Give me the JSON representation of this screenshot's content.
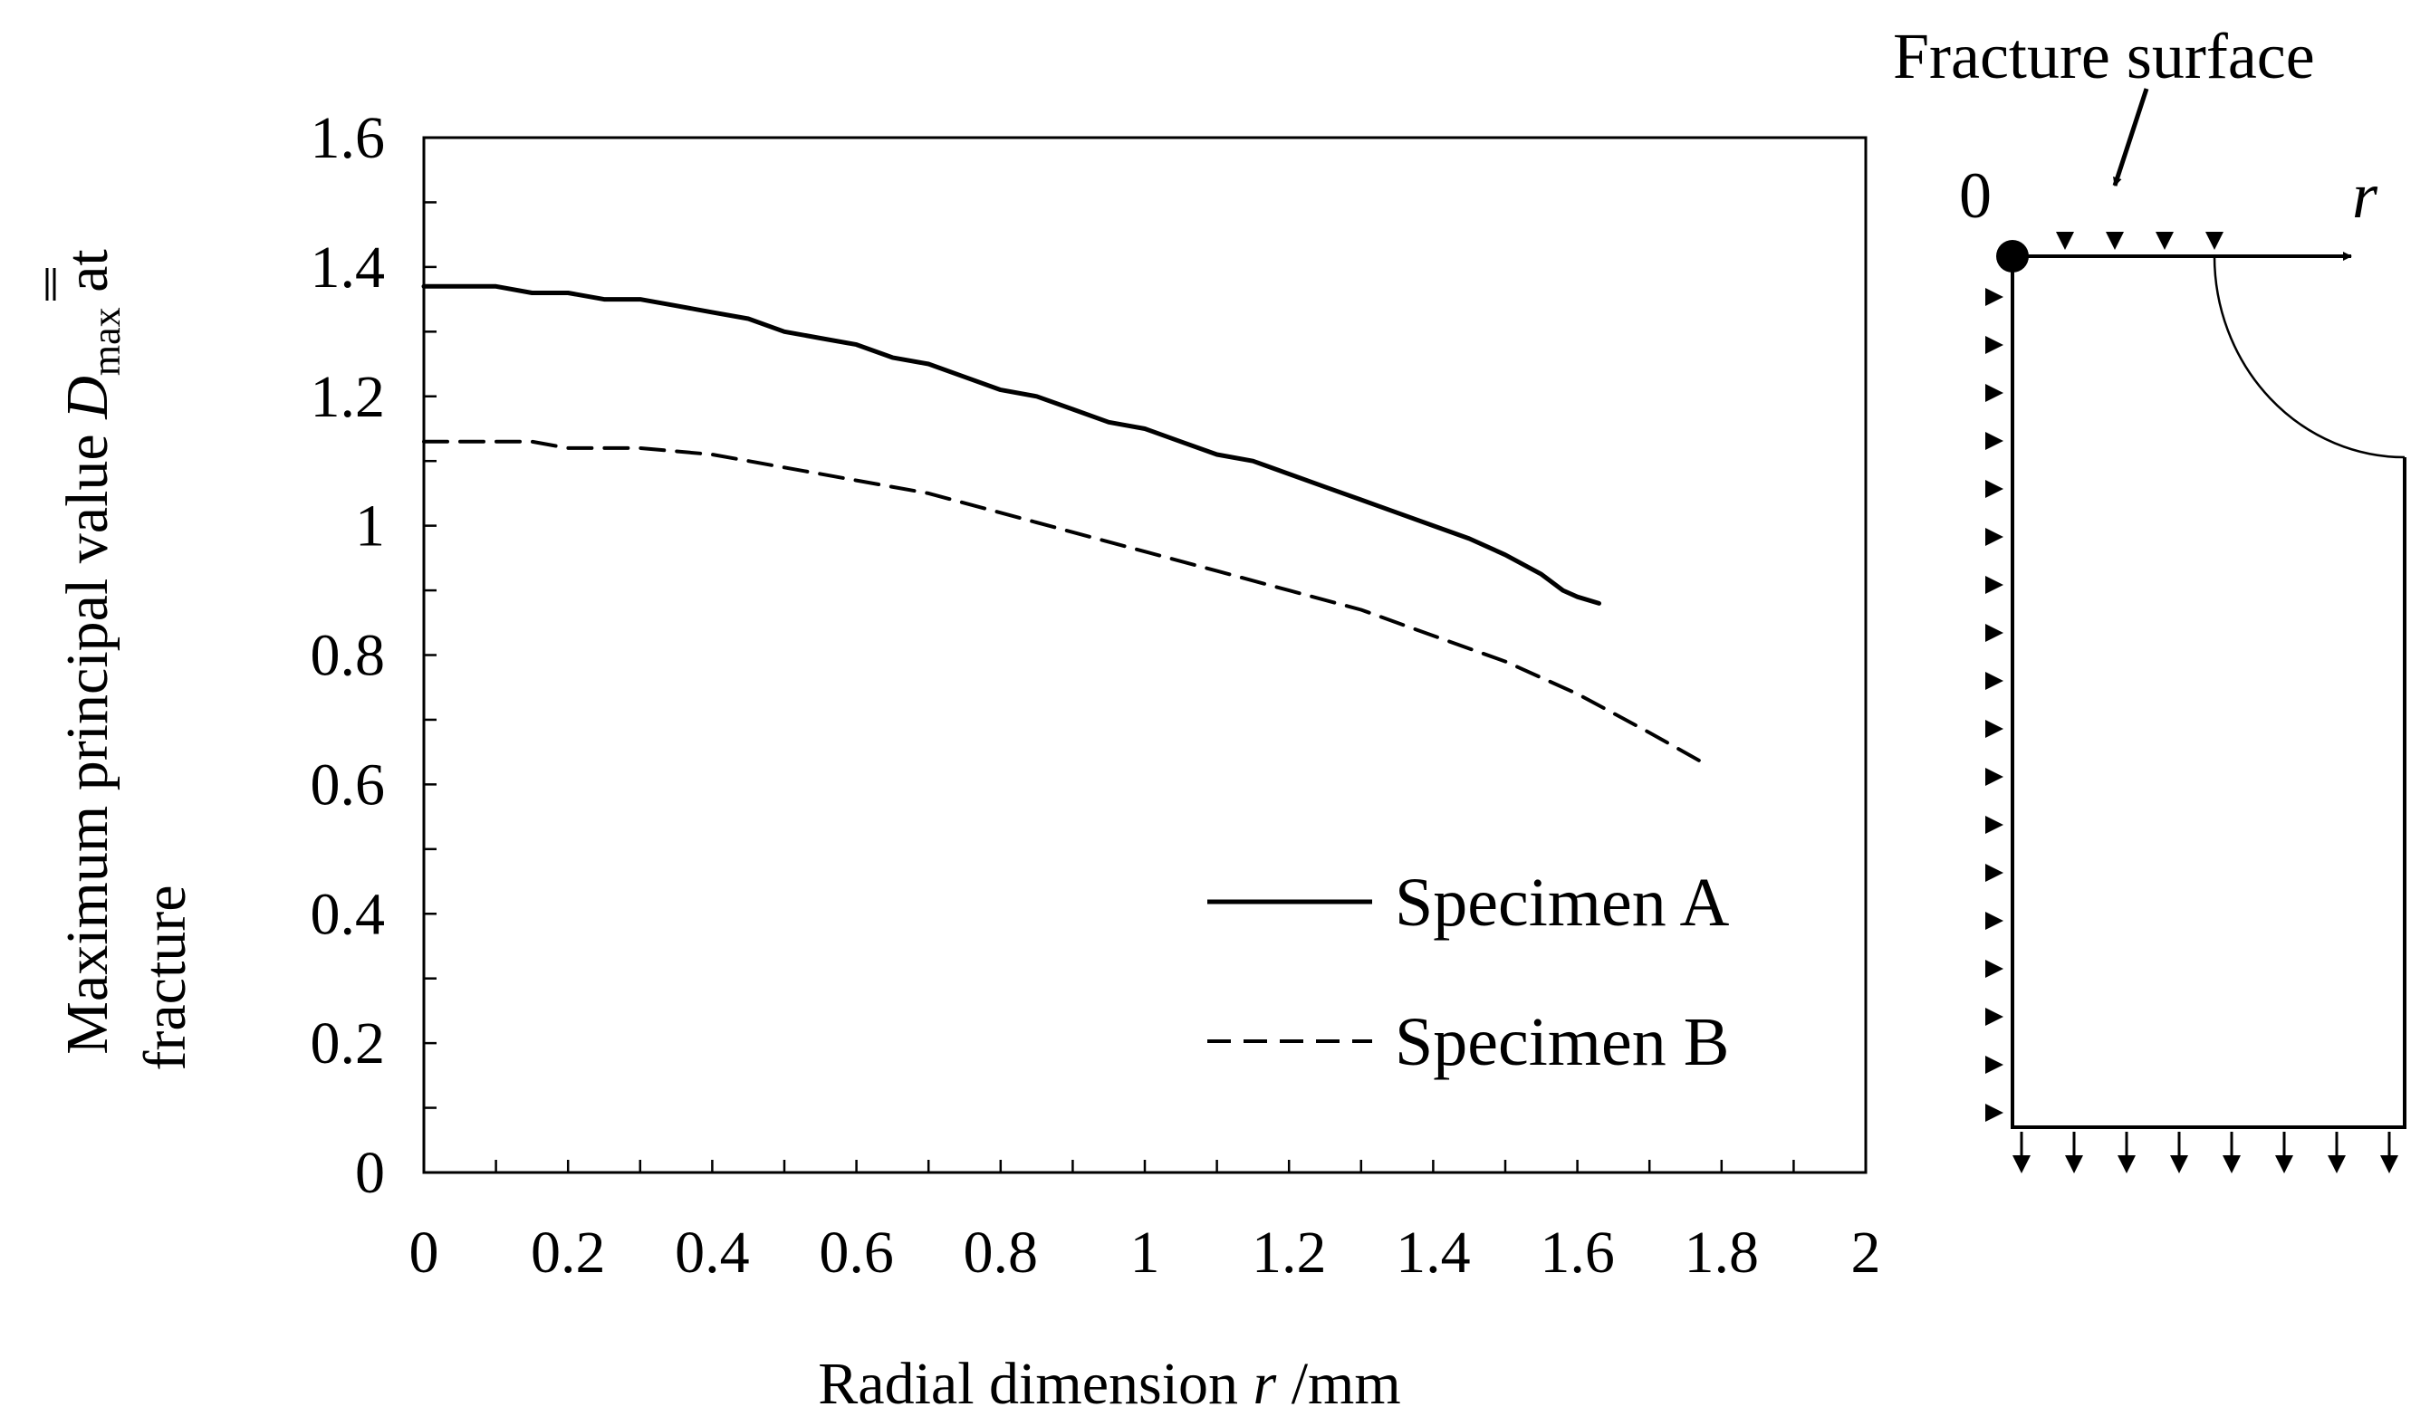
{
  "chart_data": {
    "type": "line",
    "title": "",
    "xlabel": "Radial dimension r /mm",
    "xlabel_parts": {
      "prefix": "Radial dimension ",
      "variable": "r",
      "suffix": " /mm"
    },
    "ylabel_line1": {
      "prefix": "Maximum principal value ",
      "symbol": "D",
      "subscript": "max",
      "suffix": " at"
    },
    "ylabel_line2": "fracture",
    "xlim": [
      0,
      2
    ],
    "ylim": [
      0,
      1.6
    ],
    "x_ticks": [
      "0",
      "0.2",
      "0.4",
      "0.6",
      "0.8",
      "1",
      "1.2",
      "1.4",
      "1.6",
      "1.8",
      "2"
    ],
    "y_ticks": [
      "0",
      "0.2",
      "0.4",
      "0.6",
      "0.8",
      "1",
      "1.2",
      "1.4",
      "1.6"
    ],
    "x_tick_values": [
      0,
      0.2,
      0.4,
      0.6,
      0.8,
      1,
      1.2,
      1.4,
      1.6,
      1.8,
      2
    ],
    "y_tick_values": [
      0,
      0.2,
      0.4,
      0.6,
      0.8,
      1,
      1.2,
      1.4,
      1.6
    ],
    "grid": false,
    "legend_position": "bottom-right",
    "series": [
      {
        "name": "Specimen A",
        "style": "solid",
        "x": [
          0,
          0.1,
          0.15,
          0.2,
          0.25,
          0.3,
          0.35,
          0.4,
          0.45,
          0.5,
          0.55,
          0.6,
          0.65,
          0.7,
          0.75,
          0.8,
          0.85,
          0.9,
          0.95,
          1.0,
          1.05,
          1.1,
          1.15,
          1.2,
          1.25,
          1.3,
          1.35,
          1.4,
          1.45,
          1.5,
          1.55,
          1.58,
          1.6,
          1.63
        ],
        "y": [
          1.37,
          1.37,
          1.36,
          1.36,
          1.35,
          1.35,
          1.34,
          1.33,
          1.32,
          1.3,
          1.29,
          1.28,
          1.26,
          1.25,
          1.23,
          1.21,
          1.2,
          1.18,
          1.16,
          1.15,
          1.13,
          1.11,
          1.1,
          1.08,
          1.06,
          1.04,
          1.02,
          1.0,
          0.98,
          0.955,
          0.925,
          0.9,
          0.89,
          0.88
        ]
      },
      {
        "name": "Specimen B",
        "style": "dashed",
        "x": [
          0,
          0.1,
          0.15,
          0.2,
          0.3,
          0.4,
          0.5,
          0.6,
          0.7,
          0.8,
          0.9,
          1.0,
          1.1,
          1.2,
          1.3,
          1.4,
          1.5,
          1.6,
          1.7,
          1.78
        ],
        "y": [
          1.13,
          1.13,
          1.13,
          1.12,
          1.12,
          1.11,
          1.09,
          1.07,
          1.05,
          1.02,
          0.99,
          0.96,
          0.93,
          0.9,
          0.87,
          0.83,
          0.79,
          0.74,
          0.68,
          0.63
        ]
      }
    ]
  },
  "diagram": {
    "label_fracture_surface": "Fracture surface",
    "label_origin": "0",
    "label_axis": "r"
  }
}
